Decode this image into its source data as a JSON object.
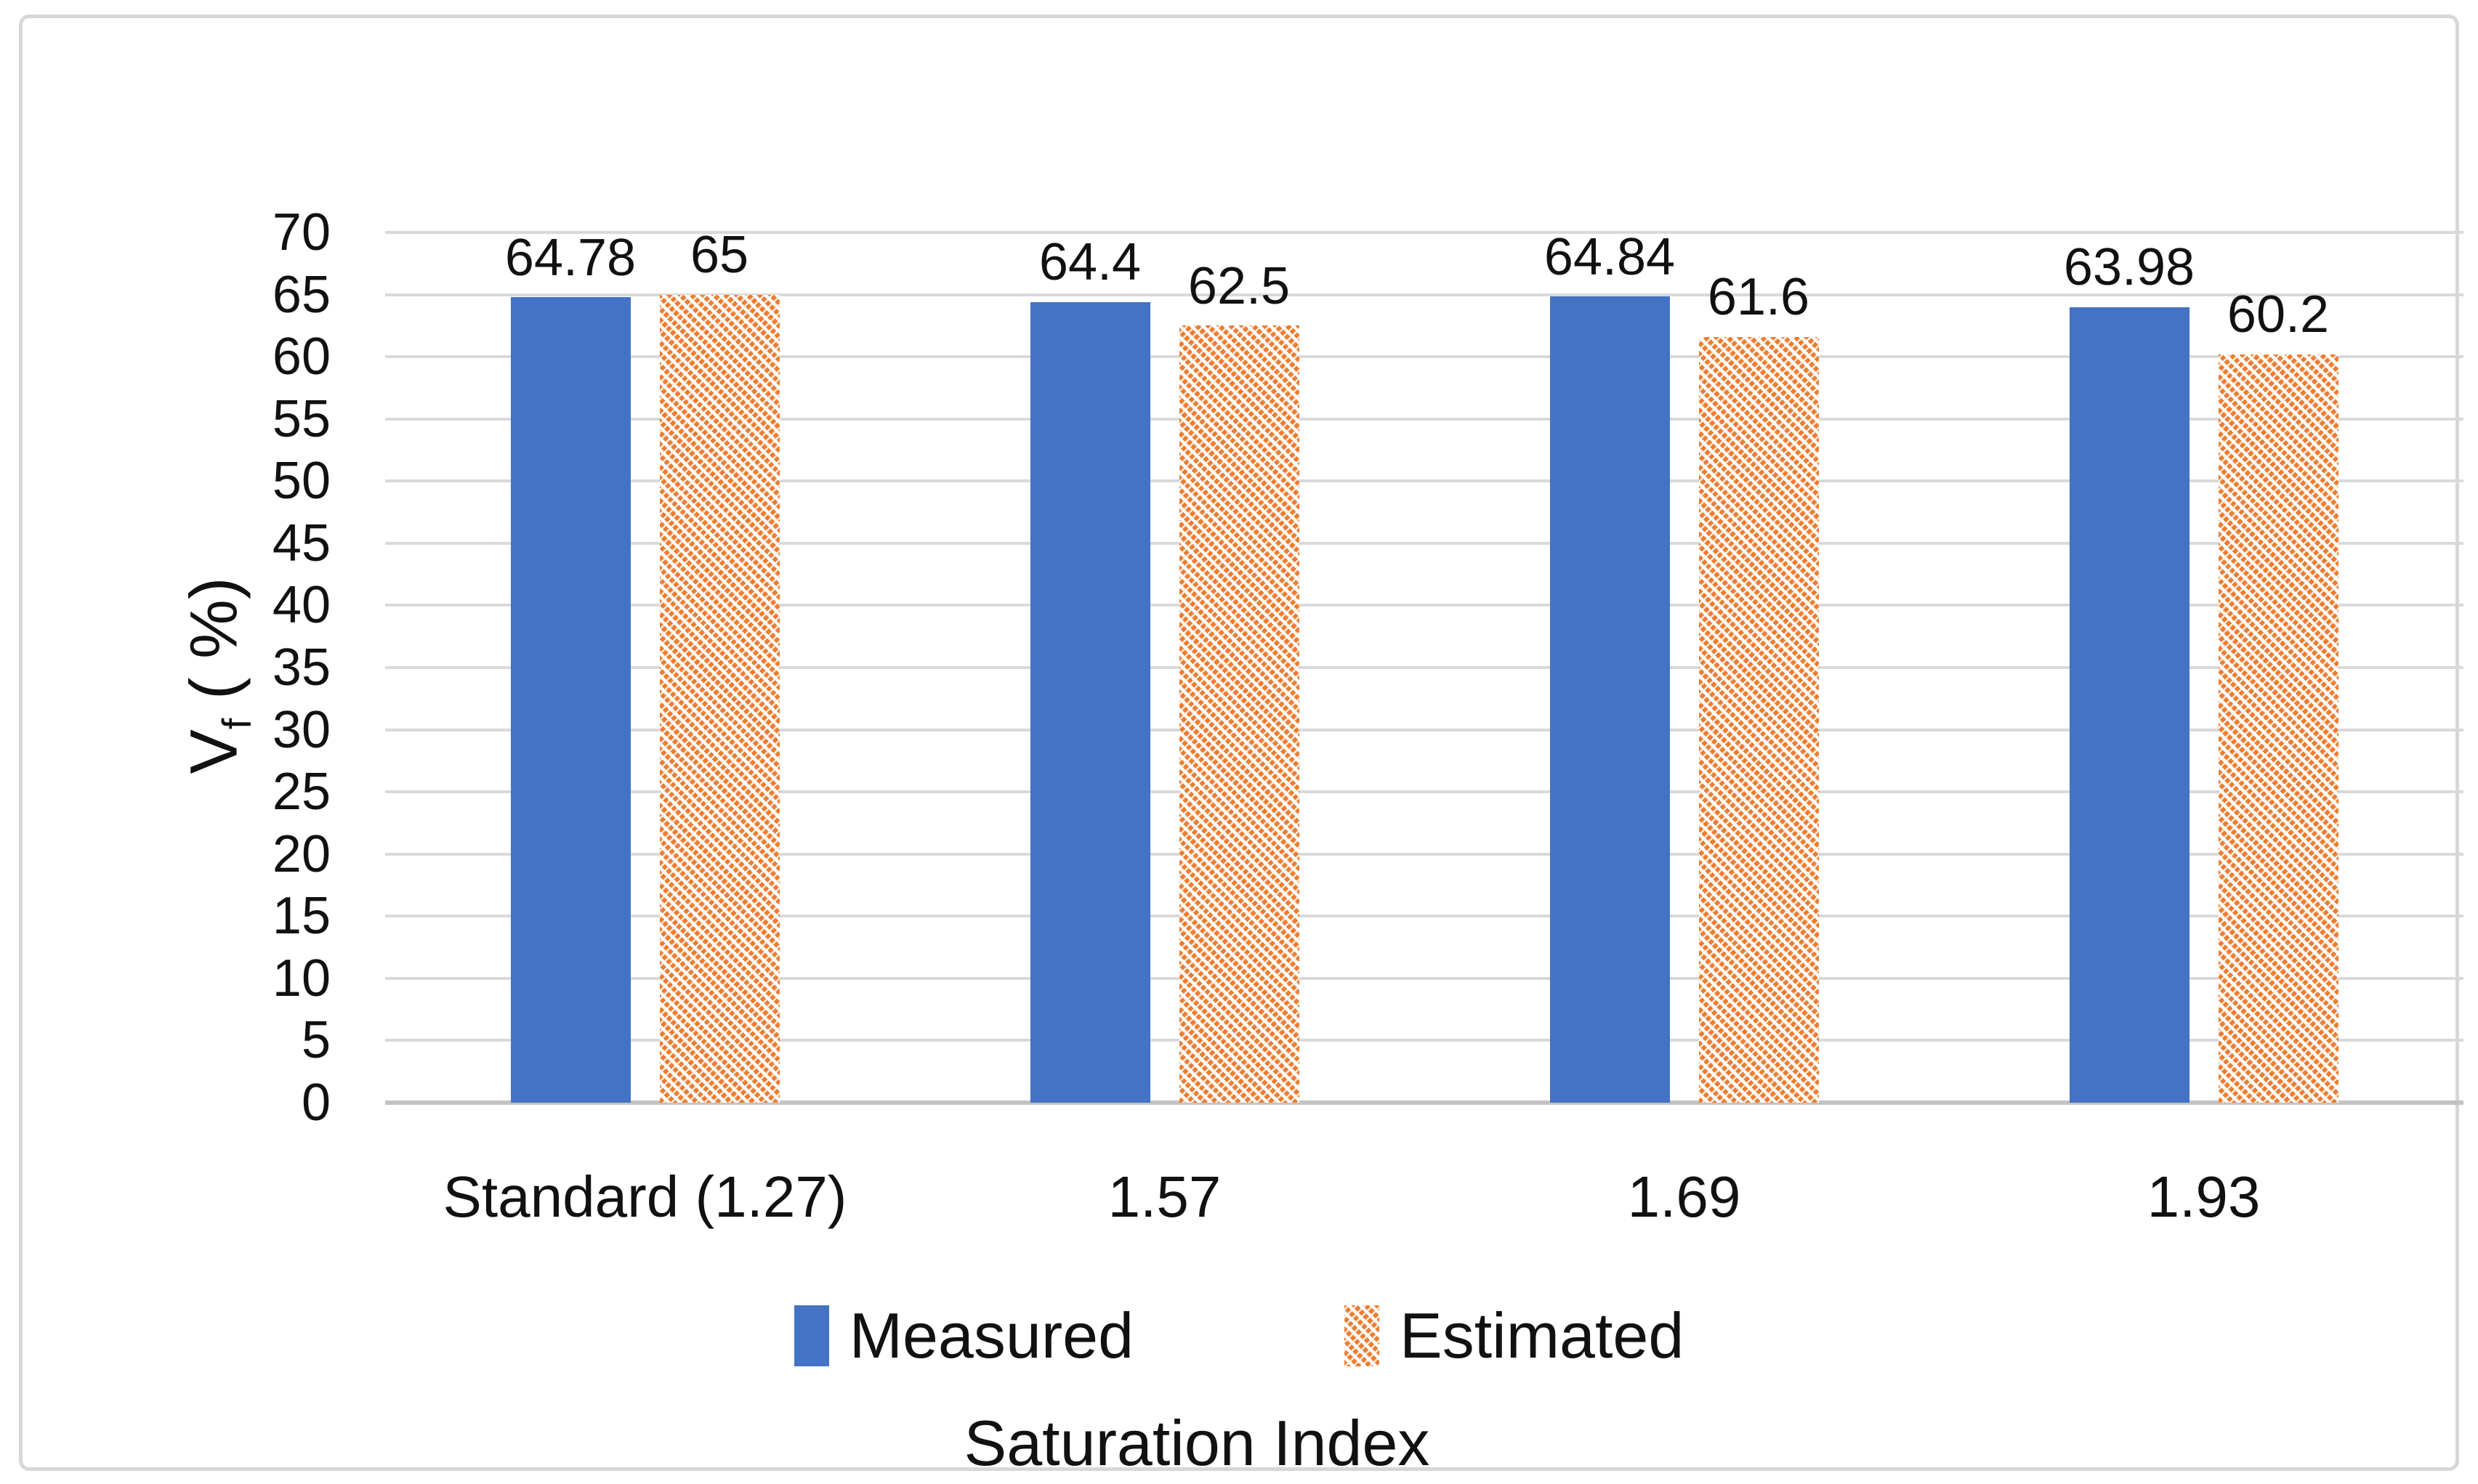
{
  "chart_data": {
    "type": "bar",
    "title": "",
    "categories": [
      "Standard (1.27)",
      "1.57",
      "1.69",
      "1.93"
    ],
    "series": [
      {
        "name": "Measured",
        "values": [
          64.78,
          64.4,
          64.84,
          63.98
        ],
        "labels": [
          "64.78",
          "64.4",
          "64.84",
          "63.98"
        ],
        "color": "#4472C4",
        "fill_style": "solid"
      },
      {
        "name": "Estimated",
        "values": [
          65,
          62.5,
          61.6,
          60.2
        ],
        "labels": [
          "65",
          "62.5",
          "61.6",
          "60.2"
        ],
        "color": "#ED7D31",
        "fill_style": "diagonal-hatch"
      }
    ],
    "xlabel": "Saturation Index",
    "ylabel_parts": {
      "base": "V",
      "sub": "f",
      "rest": " ( %)"
    },
    "ylim": [
      0,
      70
    ],
    "ytick_step": 5,
    "grid": true,
    "legend_position": "bottom",
    "data_labels_shown": true
  },
  "colors": {
    "measured_blue": "#4472C4",
    "estimated_orange": "#ED7D31",
    "gridline": "#D9D9D9",
    "axis_line": "#C3C3C3",
    "text": "#111111",
    "frame_border": "#D7D7D7",
    "background": "#FFFFFF"
  }
}
